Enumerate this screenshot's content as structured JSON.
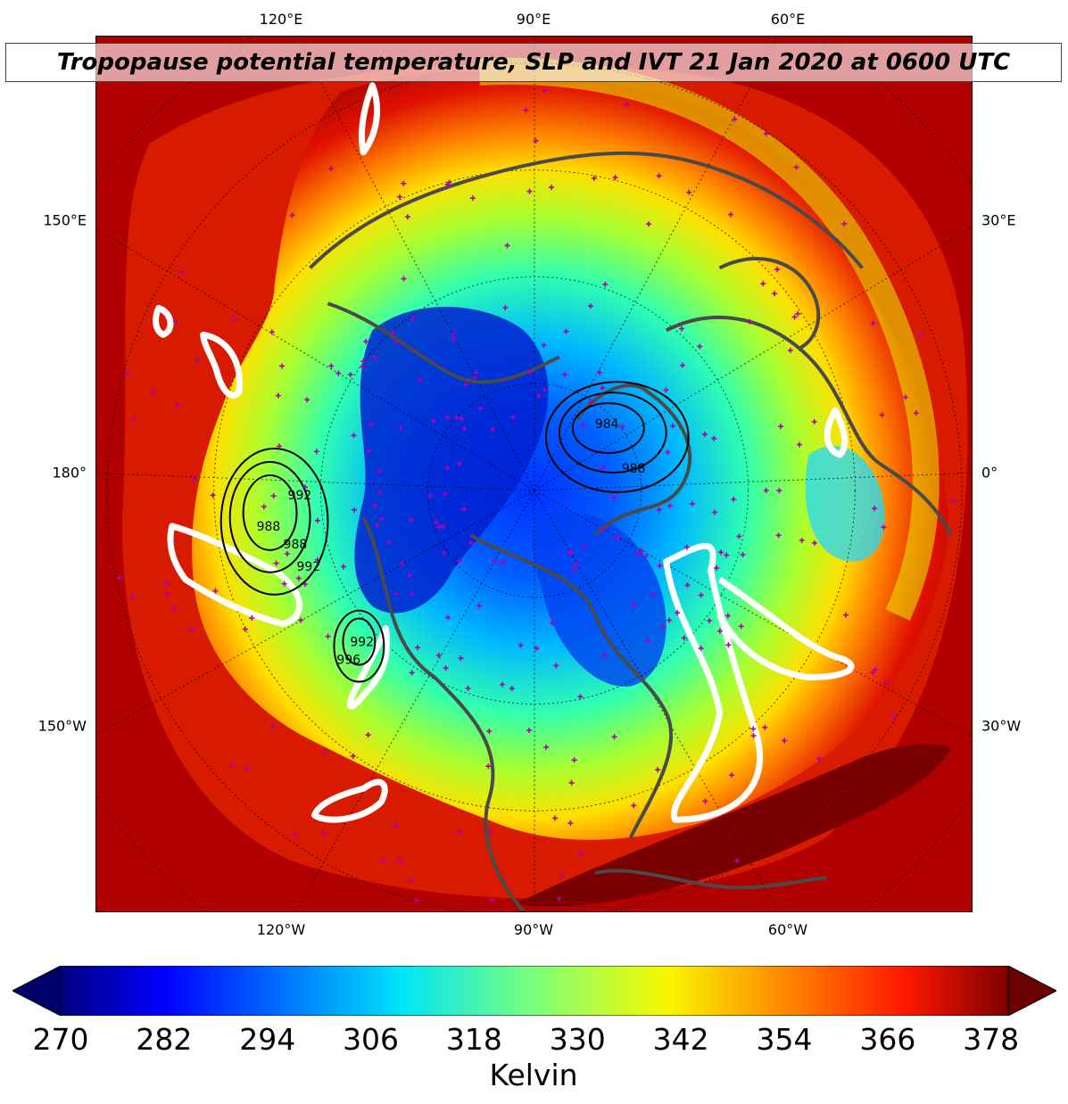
{
  "title": "Tropopause potential temperature, SLP and IVT 21 Jan 2020 at 0600 UTC",
  "top_ticks": [
    "120°E",
    "90°E",
    "60°E"
  ],
  "bottom_ticks": [
    "120°W",
    "90°W",
    "60°W"
  ],
  "left_ticks": [
    "150°E",
    "180°",
    "150°W"
  ],
  "right_ticks": [
    "30°E",
    "0°",
    "30°W"
  ],
  "colorbar": {
    "label": "Kelvin",
    "ticks": [
      "270",
      "282",
      "294",
      "306",
      "318",
      "330",
      "342",
      "354",
      "366",
      "378"
    ],
    "min": 270,
    "max": 380,
    "colormap": "jet",
    "extend": "both"
  },
  "map": {
    "projection": "north-polar-stereographic",
    "fields": [
      "tropopause potential temperature (filled)",
      "sea level pressure (black contours)",
      "IVT (white contours)"
    ],
    "slp_contour_labels": [
      "988",
      "992",
      "988",
      "992",
      "984",
      "988",
      "992",
      "996"
    ],
    "colors": {
      "coastline": "#4a4a4a",
      "station_marker": "#b000b0",
      "ivt_contour": "#ffffff",
      "slp_contour": "#000000"
    }
  }
}
